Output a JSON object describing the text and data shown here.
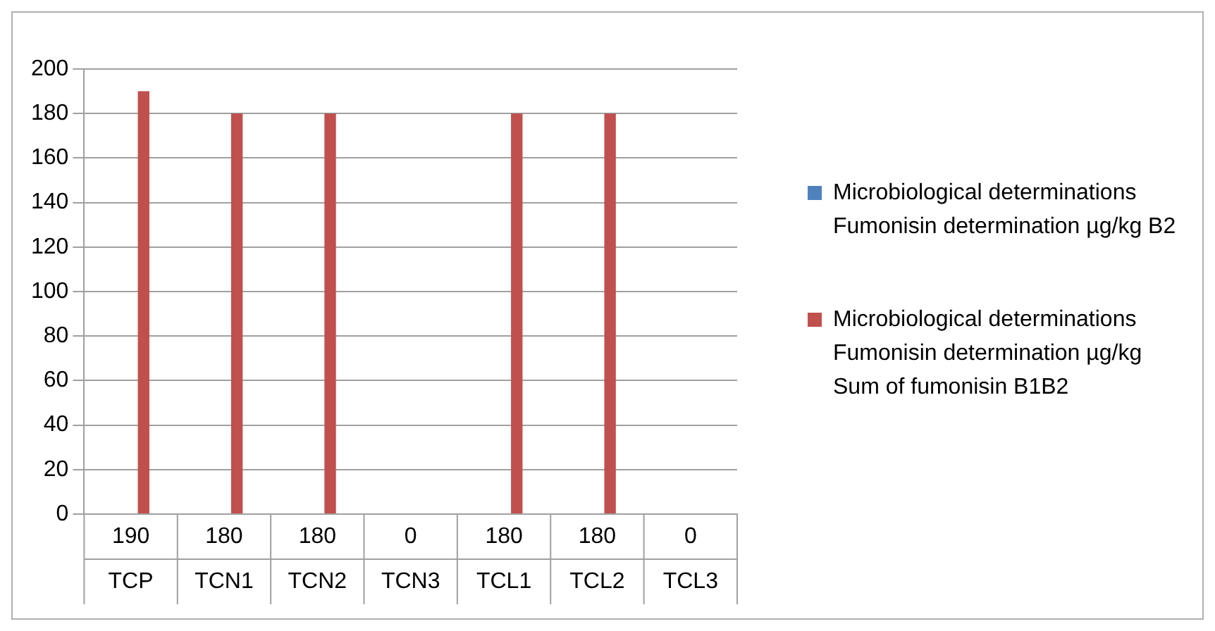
{
  "chart_data": {
    "type": "bar",
    "categories": [
      "TCP",
      "TCN1",
      "TCN2",
      "TCN3",
      "TCL1",
      "TCL2",
      "TCL3"
    ],
    "series": [
      {
        "name": "Microbiological determinations Fumonisin determination µg/kg B2",
        "color": "#4f81bd",
        "values": [
          0,
          0,
          0,
          0,
          0,
          0,
          0
        ]
      },
      {
        "name": "Microbiological determinations Fumonisin determination µg/kg Sum of fumonisin B1B2",
        "color": "#c0504d",
        "values": [
          190,
          180,
          180,
          0,
          180,
          180,
          0
        ],
        "value_labels": [
          "190",
          "180",
          "180",
          "0",
          "180",
          "180",
          "0"
        ]
      }
    ],
    "ylim": [
      0,
      200
    ],
    "yticks": [
      0,
      20,
      40,
      60,
      80,
      100,
      120,
      140,
      160,
      180,
      200
    ],
    "grid": "y",
    "legend": "right"
  }
}
